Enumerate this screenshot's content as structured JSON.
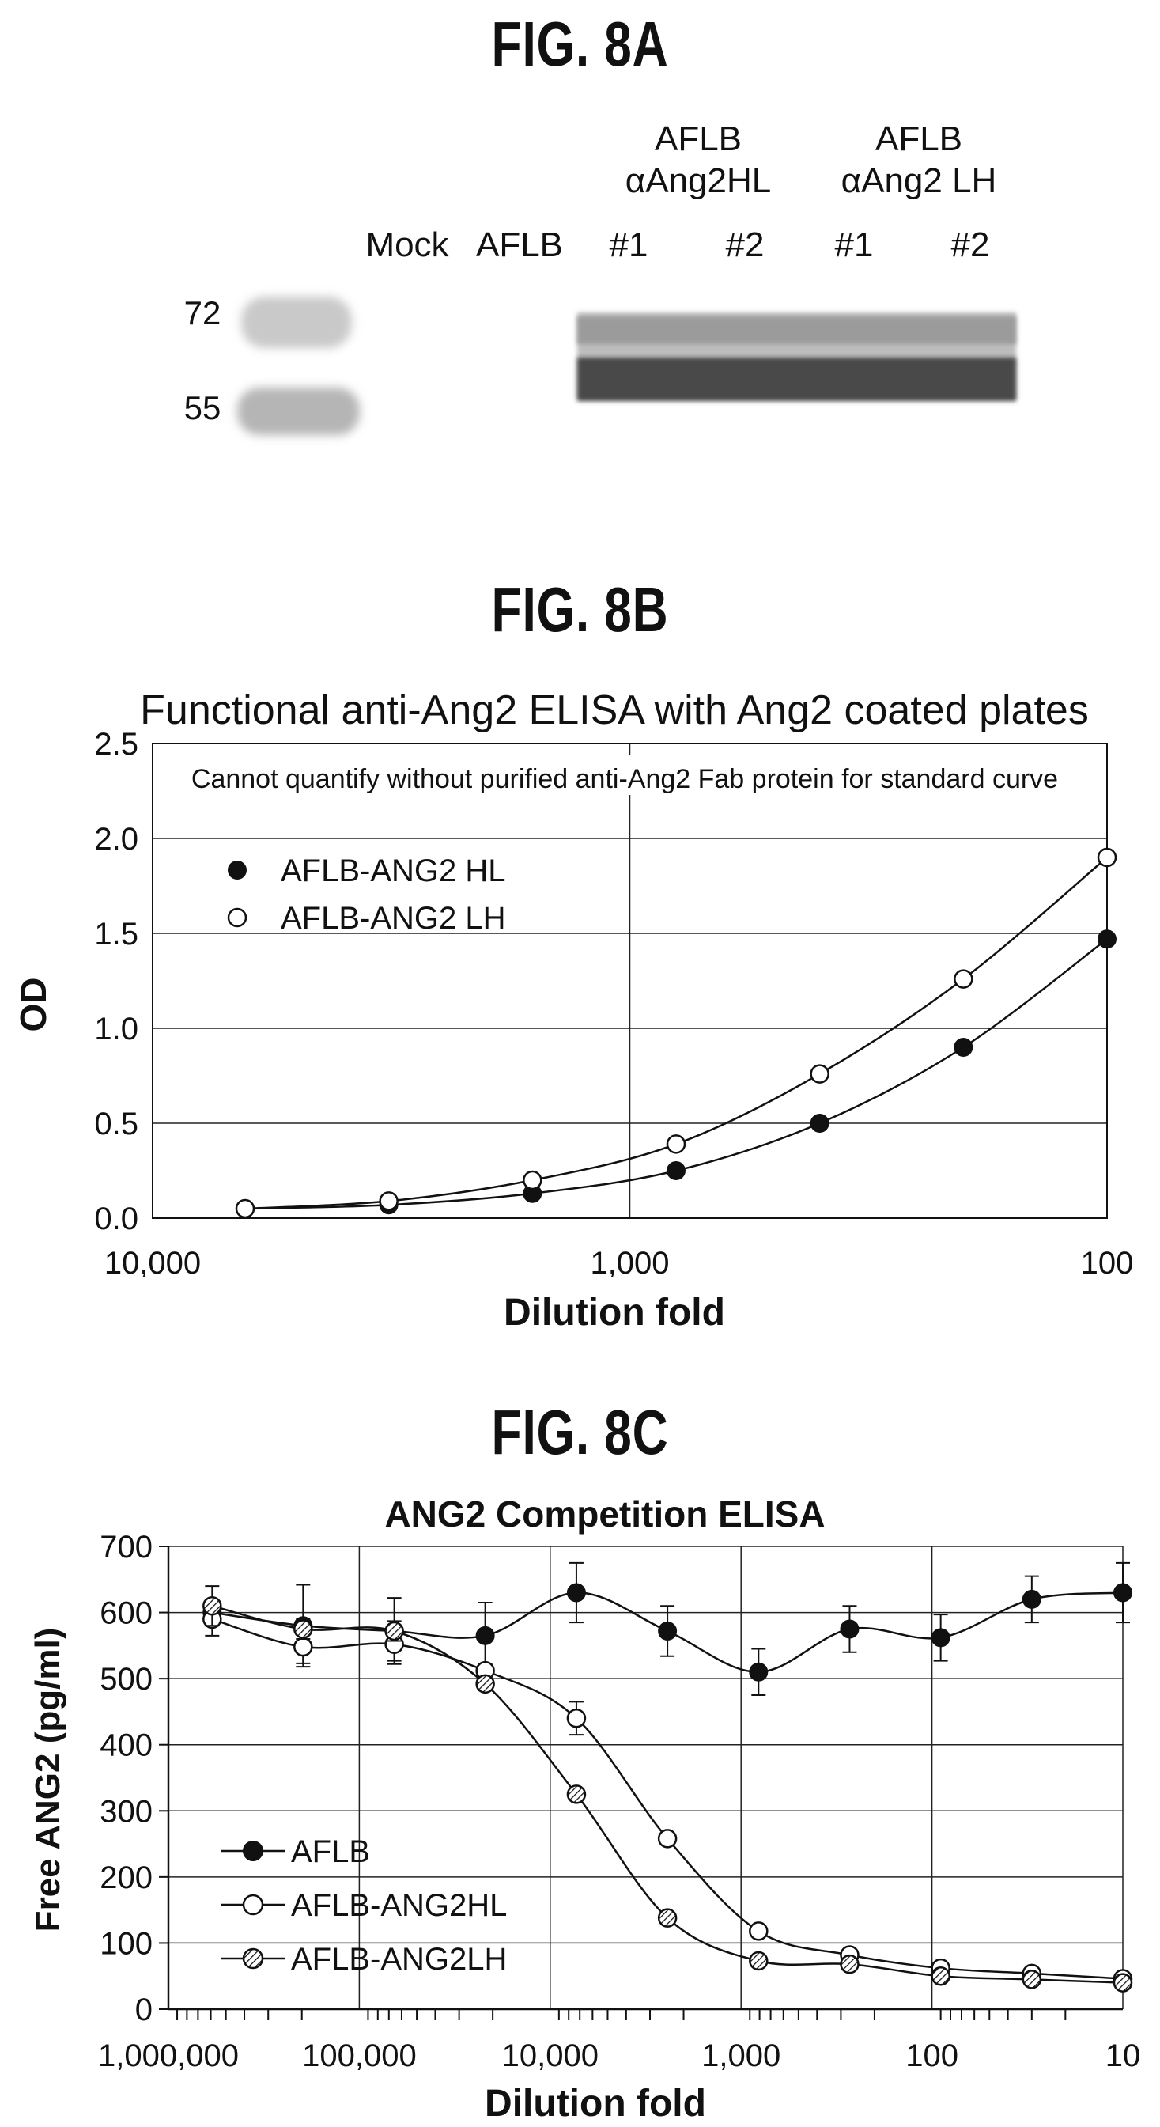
{
  "fig8a": {
    "title": "FIG. 8A",
    "group1": {
      "line1": "AFLB",
      "line2": "αAng2HL"
    },
    "group2": {
      "line1": "AFLB",
      "line2": "αAng2 LH"
    },
    "lanes": [
      "Mock",
      "AFLB",
      "#1",
      "#2",
      "#1",
      "#2"
    ],
    "markers": [
      "72",
      "55"
    ]
  },
  "fig8b": {
    "title": "FIG. 8B"
  },
  "fig8c": {
    "title": "FIG. 8C"
  },
  "chart_data": [
    {
      "id": "fig8b",
      "type": "line",
      "title": "Functional anti-Ang2 ELISA with Ang2 coated plates",
      "annotation": "Cannot quantify without purified anti-Ang2 Fab protein for standard curve",
      "xlabel": "Dilution fold",
      "ylabel": "OD",
      "x_scale": "log",
      "x_reversed": true,
      "xlim": [
        10000,
        100
      ],
      "ylim": [
        0,
        2.5
      ],
      "xticks": [
        10000,
        1000,
        100
      ],
      "xtick_labels": [
        "10,000",
        "1,000",
        "100"
      ],
      "yticks": [
        0.0,
        0.5,
        1.0,
        1.5,
        2.0,
        2.5
      ],
      "ytick_labels": [
        "0.0",
        "0.5",
        "1.0",
        "1.5",
        "2.0",
        "2.5"
      ],
      "grid": true,
      "legend_position": "top-left",
      "x": [
        6400,
        3200,
        1600,
        800,
        400,
        200,
        100
      ],
      "series": [
        {
          "name": "AFLB-ANG2 HL",
          "marker": "filled-circle",
          "values": [
            0.05,
            0.07,
            0.13,
            0.25,
            0.5,
            0.9,
            1.47
          ]
        },
        {
          "name": "AFLB-ANG2 LH",
          "marker": "open-circle",
          "values": [
            0.05,
            0.09,
            0.2,
            0.39,
            0.76,
            1.26,
            1.9
          ]
        }
      ]
    },
    {
      "id": "fig8c",
      "type": "line",
      "title": "ANG2 Competition ELISA",
      "xlabel": "Dilution fold",
      "ylabel": "Free ANG2 (pg/ml)",
      "x_scale": "log",
      "x_reversed": true,
      "xlim": [
        1000000,
        10
      ],
      "ylim": [
        0,
        700
      ],
      "xticks": [
        1000000,
        100000,
        10000,
        1000,
        100,
        10
      ],
      "xtick_labels": [
        "1,000,000",
        "100,000",
        "10,000",
        "1,000",
        "100",
        "10"
      ],
      "yticks": [
        0,
        100,
        200,
        300,
        400,
        500,
        600,
        700
      ],
      "ytick_labels": [
        "0",
        "100",
        "200",
        "300",
        "400",
        "500",
        "600",
        "700"
      ],
      "grid": true,
      "legend_position": "bottom-left",
      "x": [
        590000,
        197000,
        65600,
        21900,
        7290,
        2430,
        810,
        270,
        90,
        30,
        10
      ],
      "series": [
        {
          "name": "AFLB",
          "marker": "filled-circle",
          "values": [
            600,
            580,
            572,
            565,
            630,
            572,
            510,
            575,
            562,
            620,
            630
          ],
          "errors": [
            15,
            62,
            50,
            50,
            45,
            38,
            35,
            35,
            35,
            35,
            45
          ]
        },
        {
          "name": "AFLB-ANG2HL",
          "marker": "open-circle",
          "values": [
            590,
            548,
            552,
            512,
            440,
            258,
            118,
            82,
            62,
            54,
            46
          ],
          "errors": [
            25,
            25,
            25,
            10,
            25,
            0,
            0,
            0,
            0,
            0,
            0
          ]
        },
        {
          "name": "AFLB-ANG2LH",
          "marker": "hatched-circle",
          "values": [
            610,
            575,
            572,
            492,
            325,
            138,
            73,
            68,
            50,
            45,
            40
          ],
          "errors": [
            30,
            15,
            15,
            10,
            0,
            0,
            0,
            0,
            0,
            0,
            0
          ]
        }
      ]
    }
  ]
}
